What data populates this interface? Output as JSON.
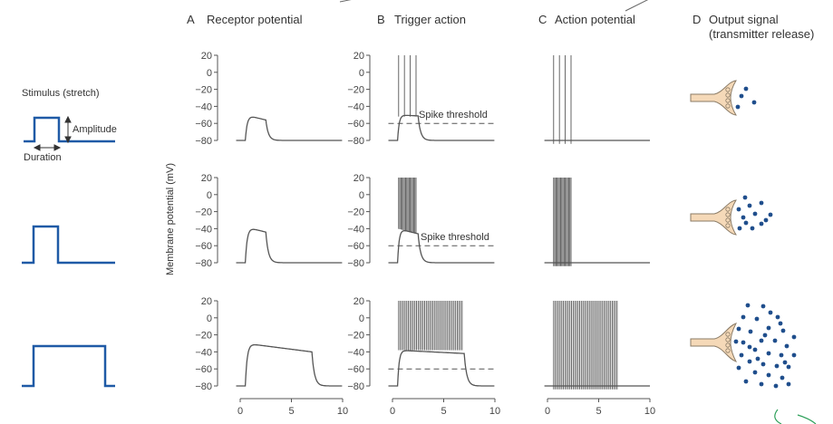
{
  "columns": [
    {
      "letter": "A",
      "title": "Receptor potential"
    },
    {
      "letter": "B",
      "title": "Trigger action"
    },
    {
      "letter": "C",
      "title": "Action potential"
    },
    {
      "letter": "D",
      "title": "Output signal",
      "subtitle": "(transmitter release)"
    }
  ],
  "stimulus": {
    "title": "Stimulus (stretch)",
    "amplitude_label": "Amplitude",
    "duration_label": "Duration"
  },
  "y_axis_label": "Membrane potential (mV)",
  "y_ticks": [
    "20",
    "0",
    "−20",
    "−40",
    "−60",
    "−80"
  ],
  "x_ticks": [
    "0",
    "5",
    "10"
  ],
  "threshold_label": "Spike threshold",
  "colors": {
    "stimulus": "#1f5aa6",
    "trace": "#555555",
    "dots": "#1f4e8c",
    "terminal": "#f5d9b8"
  },
  "chart_data": {
    "type": "line",
    "x_unit": "time (0–10)",
    "xlim": [
      0,
      10
    ],
    "ylim": [
      -80,
      20
    ],
    "rows": [
      {
        "stimulus": {
          "amplitude": 0.5,
          "duration": 2
        },
        "receptor_potential": {
          "baseline": -80,
          "peak": -50,
          "start": 0.5,
          "end": 2.5
        },
        "trigger_spikes": 4,
        "threshold": -60,
        "action_potential_spikes": 4,
        "transmitter_dots": 4
      },
      {
        "stimulus": {
          "amplitude": 0.8,
          "duration": 2
        },
        "receptor_potential": {
          "baseline": -80,
          "peak": -38,
          "start": 0.5,
          "end": 2.5
        },
        "trigger_spikes": 16,
        "threshold": -60,
        "action_potential_spikes": 16,
        "transmitter_dots": 12
      },
      {
        "stimulus": {
          "amplitude": 1.0,
          "duration": 7
        },
        "receptor_potential": {
          "baseline": -80,
          "peak": -30,
          "start": 0.5,
          "end": 7.0
        },
        "trigger_spikes": 40,
        "threshold": -60,
        "action_potential_spikes": 40,
        "transmitter_dots": 38
      }
    ]
  }
}
